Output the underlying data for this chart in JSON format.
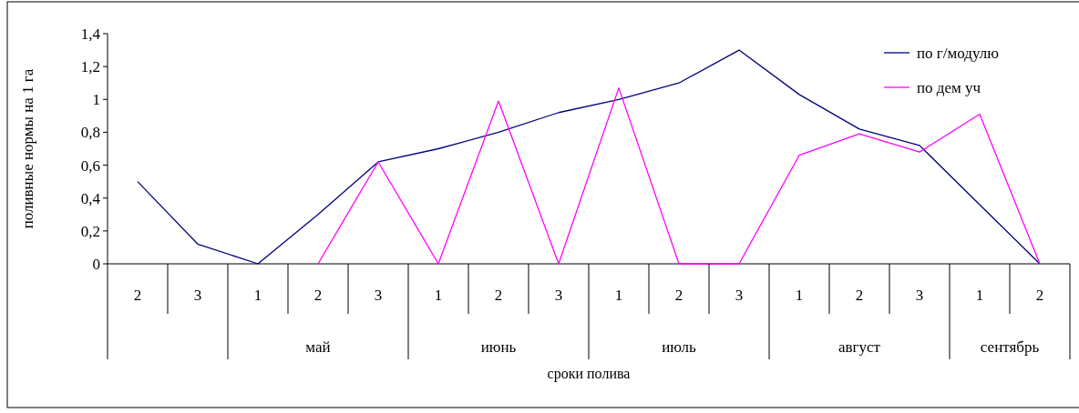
{
  "chart_data": {
    "type": "line",
    "ylabel": "поливные нормы на 1 га",
    "xlabel": "сроки полива",
    "categories": [
      "2",
      "3",
      "1",
      "2",
      "3",
      "1",
      "2",
      "3",
      "1",
      "2",
      "3",
      "1",
      "2",
      "3",
      "1",
      "2"
    ],
    "annotations": [
      "май",
      "июнь",
      "июль",
      "август",
      "сентябрь"
    ],
    "series": [
      {
        "name": "по г/модулю",
        "color": "#000080",
        "values": [
          0.5,
          0.12,
          0,
          0.3,
          0.62,
          0.7,
          0.8,
          0.92,
          1.0,
          1.1,
          1.3,
          1.03,
          0.82,
          0.72,
          0.36,
          0
        ]
      },
      {
        "name": "по дем уч",
        "color": "#ff00ff",
        "values": [
          null,
          null,
          null,
          0,
          0.62,
          0,
          0.99,
          0,
          1.07,
          0,
          0,
          0.66,
          0.79,
          0.68,
          0.91,
          0
        ]
      }
    ],
    "ylim": [
      0,
      1.4
    ],
    "yticks": [
      0,
      {
        "value": 0.2,
        "label": "0,2"
      },
      {
        "value": 0.4,
        "label": "0,4"
      },
      {
        "value": 0.6,
        "label": "0,6"
      },
      {
        "value": 0.8,
        "label": "0,8"
      },
      1,
      {
        "value": 1.2,
        "label": "1,2"
      },
      {
        "value": 1.4,
        "label": "1,4"
      }
    ],
    "grid": false,
    "legend": "top right",
    "line_style": "solid"
  }
}
